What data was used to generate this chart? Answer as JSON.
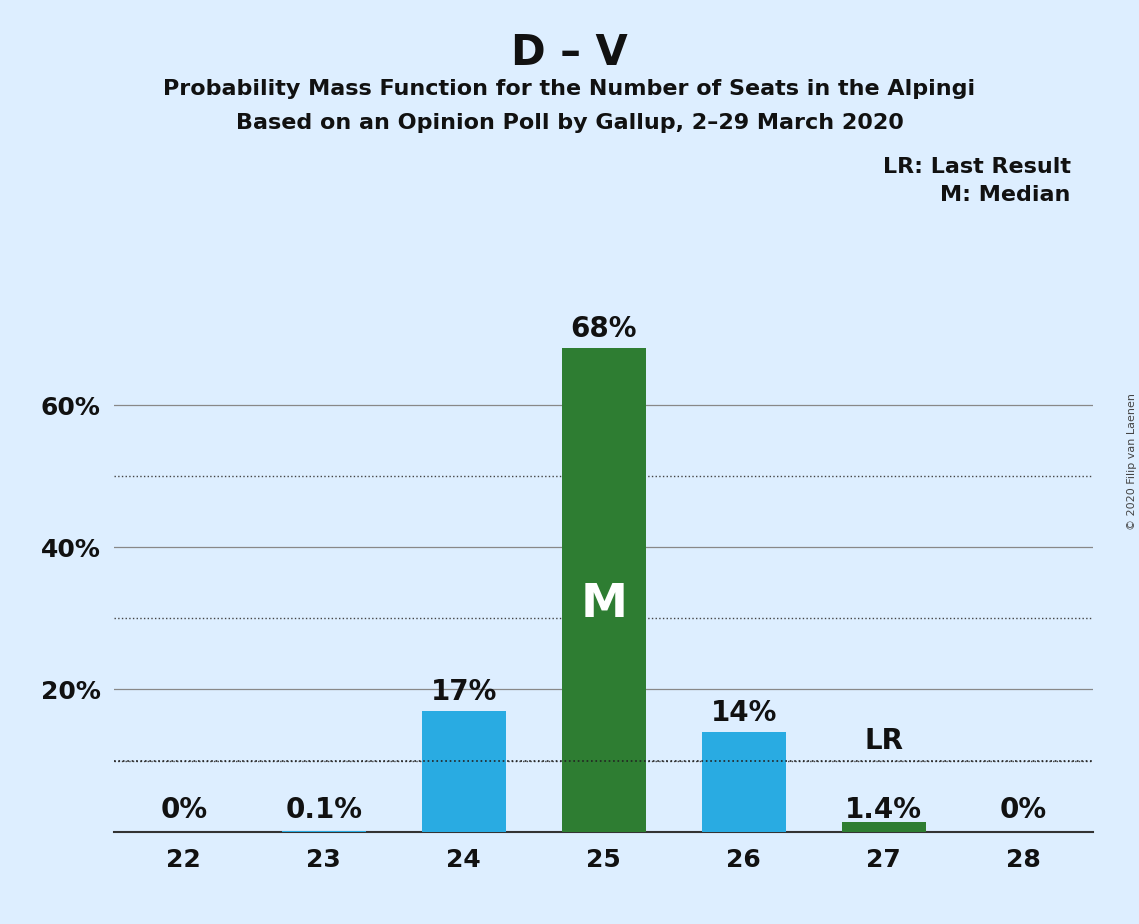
{
  "title": "D – V",
  "subtitle1": "Probability Mass Function for the Number of Seats in the Alpingi",
  "subtitle2": "Based on an Opinion Poll by Gallup, 2–29 March 2020",
  "categories": [
    22,
    23,
    24,
    25,
    26,
    27,
    28
  ],
  "values": [
    0.0,
    0.001,
    0.17,
    0.68,
    0.14,
    0.014,
    0.0
  ],
  "bar_colors": [
    "#29ABE2",
    "#29ABE2",
    "#29ABE2",
    "#2E7D32",
    "#29ABE2",
    "#2E7D32",
    "#29ABE2"
  ],
  "value_labels": [
    "0%",
    "0.1%",
    "17%",
    "68%",
    "14%",
    "1.4%",
    "0%"
  ],
  "median_bar_index": 3,
  "median_label": "M",
  "lr_value": 0.1,
  "lr_label": "LR",
  "legend_lr": "LR: Last Result",
  "legend_m": "M: Median",
  "copyright": "© 2020 Filip van Laenen",
  "background_color": "#ddeeff",
  "dotted_yticks": [
    0.1,
    0.3,
    0.5
  ],
  "solid_yticks": [
    0.2,
    0.4,
    0.6
  ],
  "ylim": [
    0,
    0.78
  ],
  "bar_width": 0.6,
  "title_fontsize": 30,
  "subtitle_fontsize": 16,
  "tick_fontsize": 18,
  "annotation_fontsize": 20,
  "legend_fontsize": 16,
  "copyright_fontsize": 8
}
